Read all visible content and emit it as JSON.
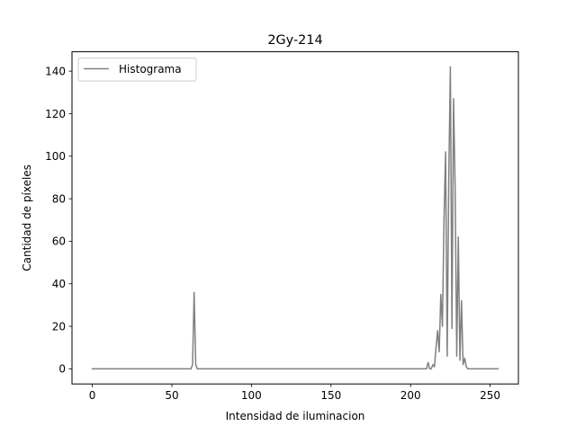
{
  "chart_data": {
    "type": "line",
    "title": "2Gy-214",
    "xlabel": "Intensidad de iluminacion",
    "ylabel": "Cantidad de píxeles",
    "xlim": [
      -12.75,
      267.75
    ],
    "ylim": [
      -7.1,
      149.1
    ],
    "xticks": [
      0,
      50,
      100,
      150,
      200,
      250
    ],
    "yticks": [
      0,
      20,
      40,
      60,
      80,
      100,
      120,
      140
    ],
    "grid": false,
    "legend_position": "top-left",
    "series": [
      {
        "name": "Histograma",
        "color": "#808080",
        "points": [
          [
            0,
            0
          ],
          [
            62,
            0
          ],
          [
            63,
            2
          ],
          [
            64,
            36
          ],
          [
            65,
            2
          ],
          [
            66,
            0
          ],
          [
            210,
            0
          ],
          [
            211,
            3
          ],
          [
            212,
            0
          ],
          [
            213,
            0
          ],
          [
            214,
            2
          ],
          [
            215,
            1
          ],
          [
            216,
            10
          ],
          [
            217,
            18
          ],
          [
            218,
            8
          ],
          [
            219,
            35
          ],
          [
            220,
            20
          ],
          [
            221,
            70
          ],
          [
            222,
            102
          ],
          [
            223,
            6
          ],
          [
            224,
            90
          ],
          [
            225,
            142
          ],
          [
            226,
            19
          ],
          [
            227,
            127
          ],
          [
            228,
            85
          ],
          [
            229,
            6
          ],
          [
            230,
            62
          ],
          [
            231,
            4
          ],
          [
            232,
            32
          ],
          [
            233,
            2
          ],
          [
            234,
            5
          ],
          [
            235,
            1
          ],
          [
            236,
            0
          ],
          [
            255,
            0
          ]
        ]
      }
    ]
  }
}
